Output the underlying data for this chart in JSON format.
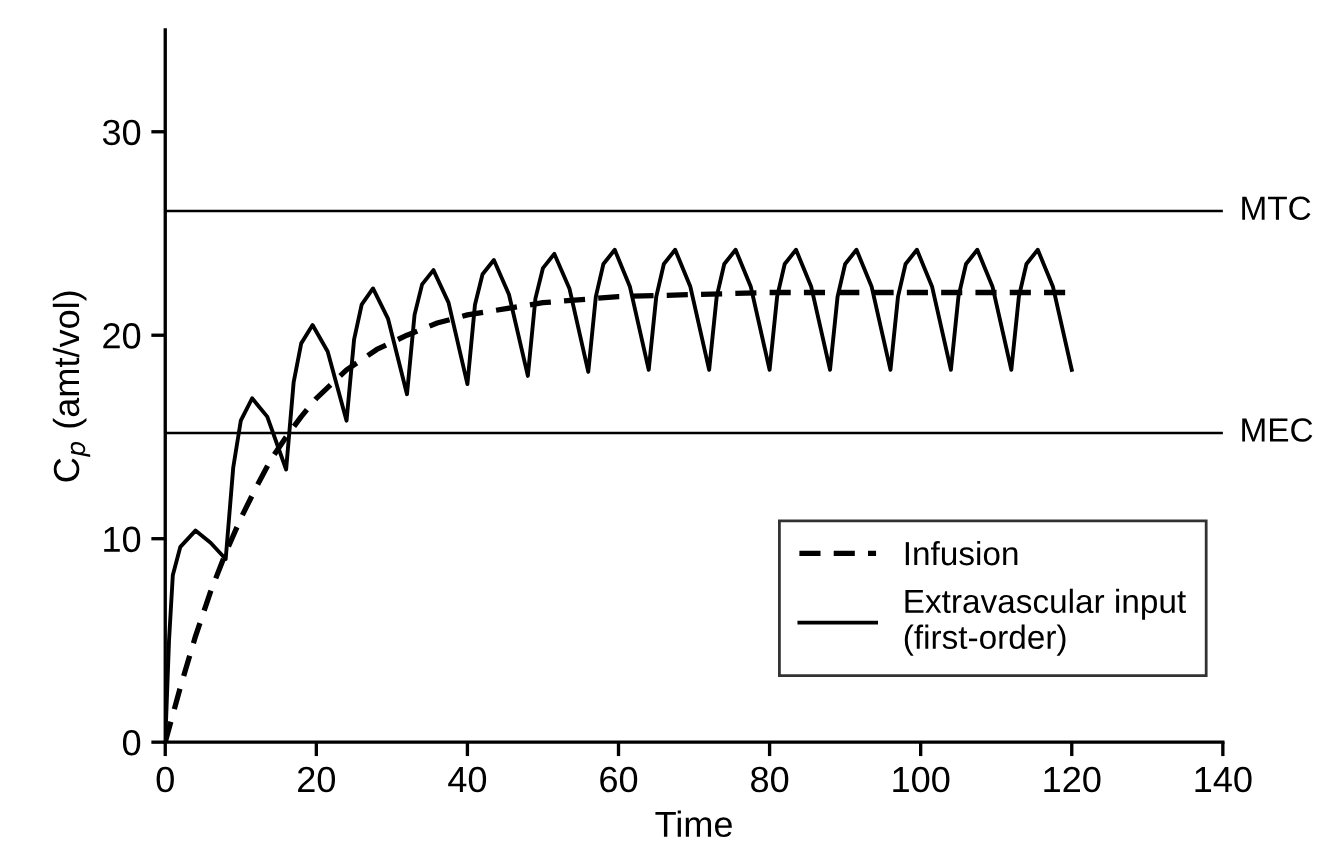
{
  "chart_data": {
    "type": "line",
    "xlabel": "Time",
    "ylabel": "C$_{p}$ (amt/vol)",
    "xlim": [
      0,
      140
    ],
    "ylim": [
      0,
      35
    ],
    "xticks": [
      0,
      20,
      40,
      60,
      80,
      100,
      120,
      140
    ],
    "yticks": [
      0,
      10,
      20,
      30
    ],
    "grid": false,
    "legend": "bottom right",
    "marker": "none",
    "series": [
      {
        "name": "Infusion",
        "color": "#000000",
        "line_style": "dashed",
        "x": [
          0,
          2,
          4,
          6,
          8,
          10,
          12,
          14,
          16,
          18,
          20,
          24,
          28,
          32,
          36,
          40,
          50,
          60,
          70,
          80,
          100,
          120
        ],
        "values": [
          0,
          2.7,
          5.2,
          7.4,
          9.3,
          11.0,
          12.5,
          13.9,
          15.0,
          16.0,
          16.9,
          18.3,
          19.3,
          20.0,
          20.6,
          21.0,
          21.6,
          21.9,
          22.0,
          22.1,
          22.1,
          22.1
        ]
      },
      {
        "name": "Extravascular input\n(first-order)",
        "color": "#000000",
        "line_style": "solid",
        "x": [
          0,
          0.5,
          1,
          2,
          4,
          6,
          8,
          9,
          10,
          11.5,
          13.5,
          16,
          17,
          18,
          19.5,
          21.5,
          24,
          25,
          26,
          27.5,
          29.5,
          32,
          33,
          34,
          35.5,
          37.5,
          40,
          41,
          42,
          43.5,
          45.5,
          48,
          49,
          50,
          51.5,
          53.5,
          56,
          57,
          58,
          59.5,
          61.5,
          64,
          65,
          66,
          67.5,
          69.5,
          72,
          73,
          74,
          75.5,
          77.5,
          80,
          81,
          82,
          83.5,
          85.5,
          88,
          89,
          90,
          91.5,
          93.5,
          96,
          97,
          98,
          99.5,
          101.5,
          104,
          105,
          106,
          107.5,
          109.5,
          112,
          113,
          114,
          115.5,
          117.5,
          120
        ],
        "values": [
          0,
          5,
          8.2,
          9.6,
          10.4,
          9.8,
          9.0,
          13.5,
          15.8,
          16.9,
          16.0,
          13.4,
          17.7,
          19.6,
          20.5,
          19.2,
          15.8,
          19.8,
          21.5,
          22.3,
          20.8,
          17.1,
          21.0,
          22.5,
          23.2,
          21.6,
          17.6,
          21.5,
          23.0,
          23.7,
          22.0,
          18.0,
          21.8,
          23.3,
          24.0,
          22.3,
          18.2,
          21.9,
          23.5,
          24.2,
          22.4,
          18.3,
          21.9,
          23.5,
          24.2,
          22.4,
          18.3,
          21.9,
          23.5,
          24.2,
          22.4,
          18.3,
          21.9,
          23.5,
          24.2,
          22.4,
          18.3,
          21.9,
          23.5,
          24.2,
          22.4,
          18.3,
          21.9,
          23.5,
          24.2,
          22.4,
          18.3,
          21.9,
          23.5,
          24.2,
          22.4,
          18.3,
          21.9,
          23.5,
          24.2,
          22.4,
          18.3
        ]
      }
    ],
    "ref_lines": [
      {
        "axis": "y",
        "value": 26.1,
        "label": "MTC",
        "color": "#000000",
        "line_style": "solid"
      },
      {
        "axis": "y",
        "value": 15.2,
        "label": "MEC",
        "color": "#000000",
        "line_style": "solid"
      }
    ]
  }
}
